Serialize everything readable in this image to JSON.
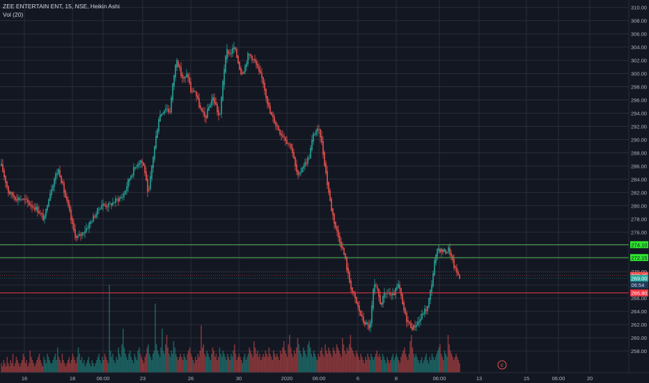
{
  "header": {
    "symbol_line": "ZEE ENTERTAIN ENT, 15, NSE, Heikin Ashi",
    "volume_line": "Vol (20)"
  },
  "colors": {
    "background": "#131722",
    "grid": "#2a2e39",
    "up": "#26a69a",
    "down": "#ef5350",
    "axis_text": "#b2b5be",
    "support_line": "#4caf50",
    "support_label": "#2ee52e",
    "resistance_line": "#f23645"
  },
  "chart_data": {
    "type": "candlestick",
    "style": "Heikin Ashi",
    "interval": "15",
    "exchange": "NSE",
    "y_axis": {
      "ticks": [
        "258.00",
        "260.00",
        "262.00",
        "264.00",
        "266.00",
        "268.00",
        "270.00",
        "272.00",
        "274.00",
        "276.00",
        "278.00",
        "280.00",
        "282.00",
        "284.00",
        "286.00",
        "288.00",
        "290.00",
        "292.00",
        "294.00",
        "296.00",
        "298.00",
        "300.00",
        "302.00",
        "304.00",
        "306.00",
        "308.00",
        "310.00"
      ],
      "range": [
        256.8,
        310.6
      ]
    },
    "x_axis": {
      "ticks": [
        "16",
        "18",
        "06:00",
        "23",
        "26",
        "30",
        "2020",
        "06:00",
        "6",
        "8",
        "06:00",
        "13",
        "15",
        "06:00",
        "20"
      ]
    },
    "horizontal_lines": [
      {
        "value": 274.1,
        "label": "274.10",
        "color": "#4caf50"
      },
      {
        "value": 272.15,
        "label": "272.15",
        "color": "#4caf50"
      },
      {
        "value": 266.8,
        "label": "266.80",
        "color": "#f23645"
      }
    ],
    "price_labels": [
      {
        "value": 269.45,
        "label": "269.45",
        "kind": "down"
      },
      {
        "value": 269.0,
        "label": "269.00",
        "kind": "up"
      },
      {
        "value": 268.0,
        "label": "06:54",
        "kind": "countdown"
      }
    ],
    "price_path": [
      [
        0,
        286.0
      ],
      [
        2,
        282.0
      ],
      [
        4,
        281.2
      ],
      [
        6,
        281.0
      ],
      [
        8,
        280.2
      ],
      [
        10,
        279.5
      ],
      [
        12,
        277.8
      ],
      [
        13,
        281.0
      ],
      [
        15,
        284.5
      ],
      [
        16,
        285.5
      ],
      [
        18,
        281.0
      ],
      [
        19,
        279.0
      ],
      [
        20,
        276.5
      ],
      [
        21,
        275.0
      ],
      [
        22,
        275.5
      ],
      [
        24,
        276.8
      ],
      [
        26,
        278.5
      ],
      [
        28,
        280.2
      ],
      [
        30,
        280.0
      ],
      [
        32,
        280.8
      ],
      [
        34,
        281.5
      ],
      [
        36,
        284.5
      ],
      [
        38,
        286.5
      ],
      [
        39,
        287.0
      ],
      [
        40,
        285.5
      ],
      [
        41,
        281.0
      ],
      [
        42,
        286.0
      ],
      [
        44,
        293.5
      ],
      [
        46,
        295.0
      ],
      [
        47,
        294.0
      ],
      [
        48,
        299.0
      ],
      [
        49,
        302.5
      ],
      [
        50,
        300.0
      ],
      [
        51,
        299.0
      ],
      [
        52,
        300.0
      ],
      [
        53,
        297.0
      ],
      [
        54,
        297.5
      ],
      [
        55,
        295.5
      ],
      [
        56,
        294.0
      ],
      [
        57,
        293.2
      ],
      [
        58,
        295.0
      ],
      [
        59,
        296.5
      ],
      [
        60,
        295.0
      ],
      [
        61,
        293.0
      ],
      [
        62,
        300.0
      ],
      [
        63,
        303.5
      ],
      [
        64,
        303.0
      ],
      [
        65,
        304.0
      ],
      [
        66,
        302.0
      ],
      [
        67,
        300.0
      ],
      [
        68,
        301.0
      ],
      [
        69,
        303.0
      ],
      [
        70,
        302.5
      ],
      [
        71,
        301.5
      ],
      [
        72,
        300.0
      ],
      [
        73,
        299.0
      ],
      [
        74,
        296.5
      ],
      [
        75,
        294.0
      ],
      [
        76,
        293.0
      ],
      [
        77,
        292.0
      ],
      [
        78,
        291.0
      ],
      [
        79,
        290.5
      ],
      [
        80,
        289.5
      ],
      [
        81,
        289.0
      ],
      [
        82,
        286.0
      ],
      [
        83,
        284.0
      ],
      [
        84,
        286.0
      ],
      [
        85,
        286.5
      ],
      [
        86,
        287.5
      ],
      [
        87,
        290.5
      ],
      [
        88,
        291.5
      ],
      [
        89,
        291.0
      ],
      [
        90,
        287.5
      ],
      [
        91,
        283.5
      ],
      [
        92,
        280.0
      ],
      [
        93,
        277.5
      ],
      [
        94,
        275.5
      ],
      [
        95,
        274.0
      ],
      [
        96,
        272.0
      ],
      [
        97,
        269.0
      ],
      [
        98,
        267.0
      ],
      [
        99,
        265.5
      ],
      [
        100,
        264.0
      ],
      [
        101,
        262.5
      ],
      [
        102,
        262.0
      ],
      [
        103,
        261.5
      ],
      [
        104,
        268.0
      ],
      [
        105,
        267.0
      ],
      [
        106,
        265.0
      ],
      [
        107,
        266.5
      ],
      [
        108,
        267.0
      ],
      [
        109,
        266.0
      ],
      [
        110,
        267.0
      ],
      [
        111,
        268.0
      ],
      [
        112,
        265.0
      ],
      [
        113,
        263.0
      ],
      [
        114,
        262.0
      ],
      [
        115,
        261.5
      ],
      [
        116,
        262.2
      ],
      [
        117,
        262.8
      ],
      [
        118,
        264.0
      ],
      [
        119,
        264.5
      ],
      [
        120,
        267.5
      ],
      [
        121,
        271.5
      ],
      [
        122,
        273.5
      ],
      [
        123,
        273.2
      ],
      [
        124,
        273.0
      ],
      [
        125,
        273.5
      ],
      [
        126,
        271.5
      ],
      [
        127,
        270.0
      ],
      [
        128,
        269.3
      ]
    ]
  },
  "volume_data": [
    3,
    2,
    4,
    3,
    2,
    5,
    3,
    2,
    4,
    3,
    6,
    2,
    3,
    5,
    4,
    3,
    2,
    3,
    4,
    6,
    5,
    3,
    4,
    2,
    3,
    7,
    5,
    4,
    3,
    2,
    3,
    4,
    5,
    6,
    4,
    3,
    2,
    5,
    4,
    3,
    6,
    5,
    4,
    3,
    3,
    4,
    5,
    6,
    4,
    8,
    5,
    4,
    3,
    6,
    4,
    3,
    2,
    3,
    4,
    5,
    3,
    4,
    6,
    5,
    4,
    3,
    5,
    8,
    6,
    4,
    5,
    3,
    4,
    2,
    3,
    4,
    5,
    3,
    2,
    4,
    3,
    2,
    3,
    4,
    5,
    6,
    4,
    3,
    5,
    4,
    6,
    5,
    4,
    3,
    28,
    7,
    5,
    6,
    4,
    3,
    5,
    4,
    8,
    6,
    5,
    9,
    14,
    8,
    6,
    5,
    4,
    6,
    7,
    5,
    4,
    3,
    6,
    5,
    4,
    7,
    8,
    6,
    5,
    4,
    3,
    5,
    6,
    8,
    9,
    6,
    5,
    4,
    6,
    7,
    22,
    9,
    7,
    6,
    5,
    8,
    14,
    7,
    6,
    9,
    12,
    8,
    6,
    5,
    7,
    6,
    10,
    8,
    6,
    5,
    4,
    5,
    6,
    5,
    4,
    6,
    5,
    4,
    6,
    7,
    8,
    6,
    5,
    4,
    3,
    5,
    4,
    6,
    5,
    7,
    15,
    8,
    9,
    6,
    5,
    7,
    6,
    5,
    4,
    6,
    8,
    7,
    5,
    6,
    4,
    5,
    8,
    6,
    5,
    7,
    6,
    5,
    4,
    6,
    5,
    4,
    6,
    5,
    7,
    9,
    6,
    4,
    5,
    6,
    5,
    4,
    3,
    5,
    6,
    4,
    5,
    6,
    8,
    7,
    6,
    5,
    10,
    8,
    6,
    7,
    5,
    6,
    4,
    5,
    6,
    5,
    7,
    6,
    5,
    8,
    6,
    5,
    4,
    7,
    6,
    5,
    6,
    5,
    4,
    7,
    6,
    8,
    10,
    7,
    6,
    5,
    9,
    12,
    8,
    6,
    5,
    7,
    6,
    8,
    11,
    9,
    7,
    6,
    5,
    8,
    7,
    6,
    5,
    9,
    10,
    8,
    6,
    5,
    7,
    6,
    5,
    4,
    6,
    5,
    7,
    8,
    6,
    5,
    9,
    7,
    6,
    8,
    7,
    6,
    5,
    8,
    7,
    6,
    9,
    8,
    7,
    6,
    5,
    11,
    9,
    7,
    6,
    8,
    7,
    9,
    12,
    8,
    7,
    6,
    5,
    7,
    6,
    5,
    4,
    6,
    5,
    4,
    3,
    5,
    4,
    6,
    5,
    4,
    6,
    5,
    4,
    5,
    6,
    7,
    5,
    6,
    5,
    4,
    6,
    5,
    4,
    3,
    5,
    4,
    3,
    4,
    5,
    6,
    4,
    5,
    6,
    5,
    4,
    3,
    5,
    6,
    7,
    8,
    6,
    5,
    4,
    6,
    10,
    12,
    8,
    6,
    5,
    6,
    5,
    4,
    3,
    4,
    5,
    3,
    4,
    5,
    6,
    4,
    3,
    5,
    4,
    6,
    5,
    4,
    5,
    6,
    7,
    8,
    9,
    6,
    5,
    4,
    7,
    6,
    5,
    12,
    9,
    7,
    6,
    5,
    4,
    5,
    6,
    5,
    4,
    3
  ],
  "event_marker": {
    "label": "E"
  }
}
